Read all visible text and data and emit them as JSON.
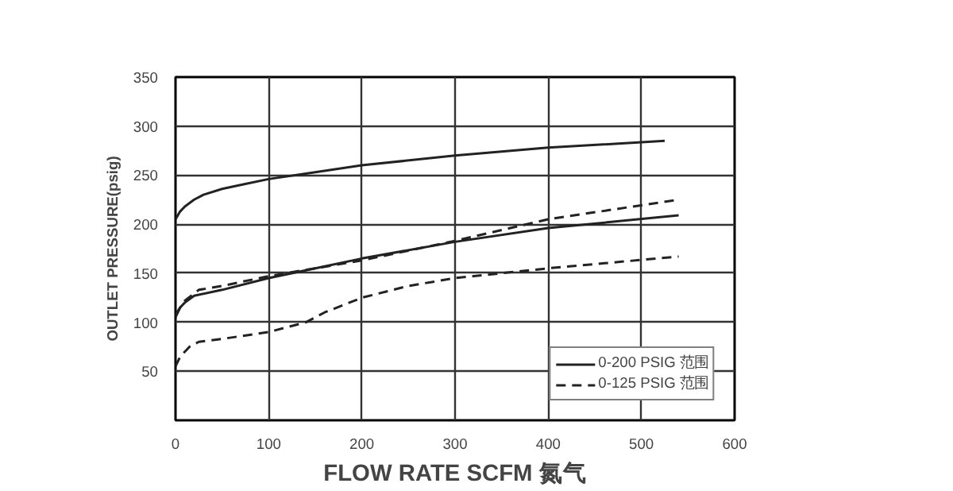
{
  "chart_data": {
    "type": "line",
    "xlabel": "FLOW RATE SCFM 氮气",
    "ylabel": "OUTLET PRESSURE(psig)",
    "xlim": [
      0,
      600
    ],
    "xticks": [
      0,
      100,
      200,
      300,
      400,
      500,
      600
    ],
    "ylim": [
      0,
      350
    ],
    "yticks": [
      50,
      100,
      150,
      200,
      250,
      300,
      350
    ],
    "grid": true,
    "legend": "bottom right",
    "marker": "none",
    "series": [
      {
        "name": "0-200 PSIG 范围",
        "color": "#222222",
        "line_style": "solid",
        "x": [
          0,
          5,
          10,
          20,
          30,
          50,
          75,
          100,
          150,
          200,
          300,
          400,
          525
        ],
        "values": [
          205,
          213,
          218,
          225,
          230,
          236,
          241,
          246,
          253,
          260,
          270,
          278,
          285
        ]
      },
      {
        "color": "#222222",
        "line_style": "solid",
        "x": [
          0,
          5,
          10,
          20,
          50,
          100,
          150,
          200,
          300,
          400,
          540
        ],
        "values": [
          105,
          115,
          120,
          127,
          133,
          145,
          155,
          165,
          182,
          196,
          209
        ]
      },
      {
        "name": "0-125 PSIG 范围",
        "color": "#222222",
        "line_style": "dashed",
        "x": [
          0,
          5,
          15,
          25,
          50,
          100,
          120,
          140,
          160,
          200,
          250,
          300,
          400,
          540
        ],
        "values": [
          55,
          65,
          75,
          80,
          83,
          90,
          95,
          100,
          110,
          125,
          137,
          145,
          155,
          167
        ]
      },
      {
        "color": "#222222",
        "line_style": "dashed",
        "x": [
          0,
          10,
          25,
          50,
          100,
          200,
          300,
          400,
          540
        ],
        "values": [
          108,
          122,
          133,
          137,
          147,
          163,
          183,
          205,
          225
        ]
      }
    ]
  }
}
